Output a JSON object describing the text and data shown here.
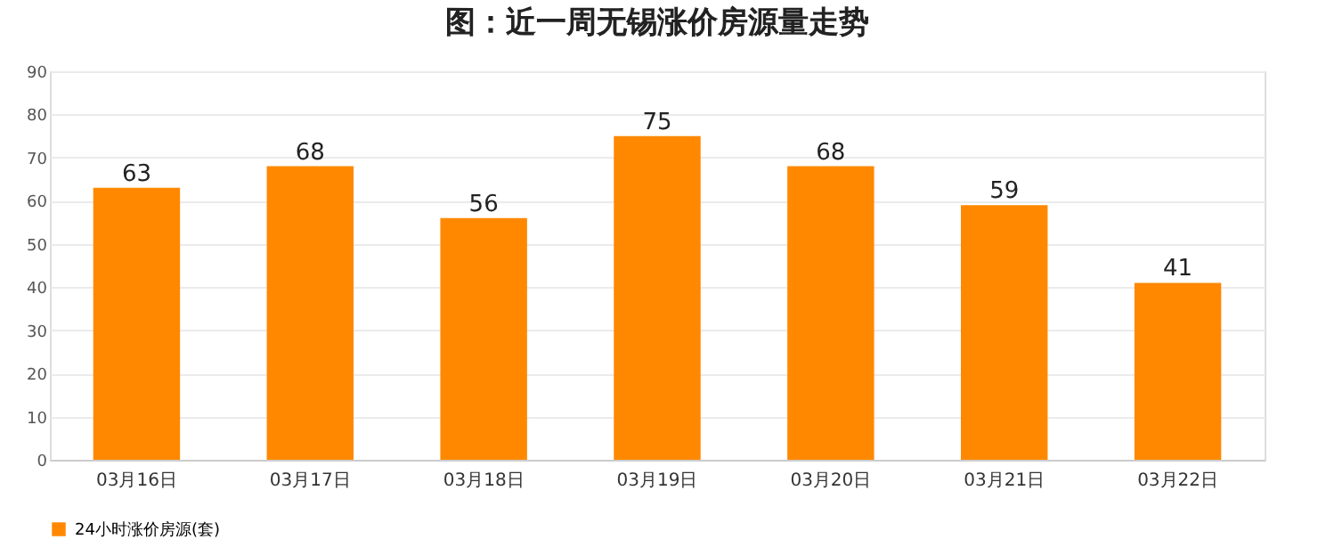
{
  "chart_data": {
    "type": "bar",
    "title": "图：近一周无锡涨价房源量走势",
    "categories": [
      "03月16日",
      "03月17日",
      "03月18日",
      "03月19日",
      "03月20日",
      "03月21日",
      "03月22日"
    ],
    "series": [
      {
        "name": "24小时涨价房源(套)",
        "color": "#ff8800",
        "values": [
          63,
          68,
          56,
          75,
          68,
          59,
          41
        ]
      }
    ],
    "ylim": [
      0,
      90
    ],
    "yticks": [
      0,
      10,
      20,
      30,
      40,
      50,
      60,
      70,
      80,
      90
    ],
    "grid": "y",
    "data_labels": true,
    "legend": "bottom"
  }
}
